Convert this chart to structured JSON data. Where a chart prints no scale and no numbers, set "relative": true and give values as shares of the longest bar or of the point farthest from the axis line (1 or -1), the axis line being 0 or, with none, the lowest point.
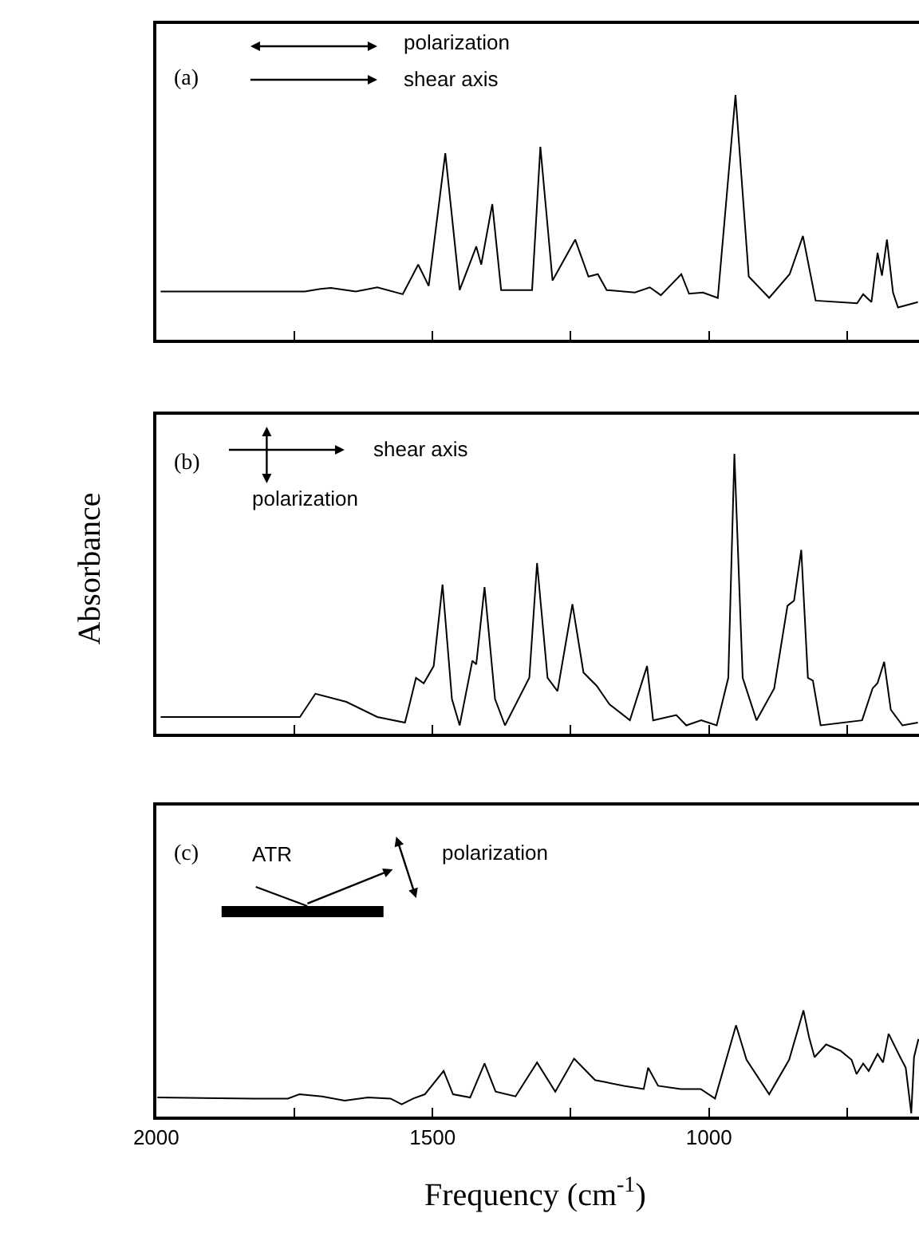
{
  "chart_data": [
    {
      "type": "line",
      "relative": true,
      "tick_labels": false,
      "xlim": [
        2000,
        620
      ],
      "xticks": [
        2000,
        {
          "value": 1750,
          "label": null
        },
        1500,
        {
          "value": 1250,
          "label": null
        },
        1000,
        {
          "value": 750,
          "label": null
        }
      ],
      "annotations": [
        "(a)",
        "polarization",
        "shear axis"
      ],
      "x": [
        1992,
        1731,
        1703,
        1684,
        1639,
        1600,
        1554,
        1526,
        1507,
        1477,
        1451,
        1421,
        1412,
        1392,
        1376,
        1320,
        1305,
        1283,
        1242,
        1218,
        1201,
        1185,
        1134,
        1107,
        1087,
        1050,
        1036,
        1011,
        984,
        952,
        928,
        891,
        854,
        830,
        807,
        732,
        721,
        706,
        695,
        687,
        678,
        667,
        658,
        622
      ],
      "series": [
        {
          "color": "#000000",
          "values": [
            0.197,
            0.197,
            0.208,
            0.212,
            0.197,
            0.214,
            0.186,
            0.307,
            0.22,
            0.762,
            0.203,
            0.381,
            0.307,
            0.554,
            0.203,
            0.203,
            0.788,
            0.242,
            0.409,
            0.258,
            0.268,
            0.203,
            0.193,
            0.214,
            0.182,
            0.268,
            0.188,
            0.193,
            0.171,
            1.0,
            0.258,
            0.171,
            0.268,
            0.424,
            0.16,
            0.149,
            0.186,
            0.154,
            0.355,
            0.262,
            0.409,
            0.193,
            0.132,
            0.154
          ]
        }
      ]
    },
    {
      "type": "line",
      "relative": true,
      "tick_labels": false,
      "xlim": [
        2000,
        620
      ],
      "ylabel": "Absorbance",
      "xticks": [
        2000,
        {
          "value": 1750,
          "label": null
        },
        1500,
        {
          "value": 1250,
          "label": null
        },
        1000,
        {
          "value": 750,
          "label": null
        }
      ],
      "annotations": [
        "(b)",
        "shear axis",
        "polarization"
      ],
      "x": [
        1992,
        1740,
        1712,
        1656,
        1600,
        1550,
        1544,
        1530,
        1516,
        1498,
        1482,
        1465,
        1451,
        1428,
        1421,
        1406,
        1387,
        1369,
        1325,
        1311,
        1292,
        1274,
        1247,
        1227,
        1203,
        1180,
        1143,
        1112,
        1101,
        1059,
        1041,
        1014,
        986,
        965,
        954,
        939,
        914,
        882,
        858,
        846,
        833,
        821,
        812,
        798,
        723,
        704,
        695,
        683,
        671,
        650,
        622
      ],
      "series": [
        {
          "color": "#000000",
          "values": [
            0.06,
            0.06,
            0.143,
            0.114,
            0.06,
            0.04,
            0.086,
            0.2,
            0.18,
            0.242,
            0.533,
            0.124,
            0.03,
            0.261,
            0.248,
            0.524,
            0.124,
            0.03,
            0.2,
            0.61,
            0.2,
            0.152,
            0.463,
            0.219,
            0.171,
            0.105,
            0.048,
            0.242,
            0.048,
            0.067,
            0.03,
            0.048,
            0.03,
            0.2,
            1.0,
            0.2,
            0.048,
            0.162,
            0.457,
            0.476,
            0.657,
            0.2,
            0.19,
            0.03,
            0.048,
            0.162,
            0.181,
            0.257,
            0.086,
            0.03,
            0.04
          ]
        }
      ]
    },
    {
      "type": "line",
      "relative": true,
      "tick_labels": "x",
      "xlim": [
        2000,
        620
      ],
      "xlabel": "Frequency (cm$^{-1}$)",
      "xticks": [
        2000,
        {
          "value": 1750,
          "label": null
        },
        1500,
        {
          "value": 1250,
          "label": null
        },
        1000,
        {
          "value": 750,
          "label": null
        }
      ],
      "annotations": [
        "(c)",
        "ATR",
        "polarization"
      ],
      "x": [
        1998,
        1823,
        1762,
        1741,
        1700,
        1659,
        1617,
        1576,
        1556,
        1535,
        1514,
        1480,
        1463,
        1432,
        1406,
        1386,
        1350,
        1311,
        1278,
        1244,
        1206,
        1154,
        1118,
        1110,
        1092,
        1051,
        1015,
        989,
        951,
        932,
        891,
        855,
        829,
        819,
        809,
        788,
        762,
        742,
        733,
        721,
        711,
        695,
        685,
        675,
        654,
        644,
        634,
        629,
        621
      ],
      "series": [
        {
          "color": "#000000",
          "values": [
            0.18,
            0.17,
            0.17,
            0.21,
            0.19,
            0.15,
            0.18,
            0.17,
            0.115,
            0.17,
            0.21,
            0.43,
            0.21,
            0.18,
            0.5,
            0.235,
            0.19,
            0.51,
            0.235,
            0.546,
            0.344,
            0.29,
            0.26,
            0.46,
            0.29,
            0.26,
            0.26,
            0.17,
            0.86,
            0.535,
            0.21,
            0.535,
            1.0,
            0.75,
            0.56,
            0.68,
            0.62,
            0.535,
            0.4,
            0.5,
            0.43,
            0.59,
            0.51,
            0.78,
            0.56,
            0.46,
            0.03,
            0.56,
            0.73
          ]
        }
      ]
    }
  ]
}
